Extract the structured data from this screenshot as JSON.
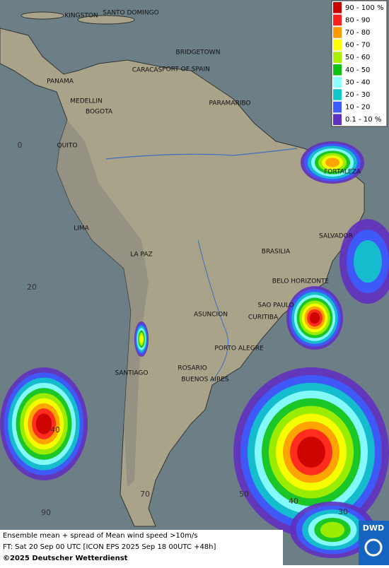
{
  "legend": {
    "items": [
      {
        "label": "90 - 100 %",
        "color": "#c80000"
      },
      {
        "label": "80 - 90",
        "color": "#ff2020"
      },
      {
        "label": "70 - 80",
        "color": "#ff9a00"
      },
      {
        "label": "60 - 70",
        "color": "#ffff00"
      },
      {
        "label": "50 - 60",
        "color": "#a8f000"
      },
      {
        "label": "40 - 50",
        "color": "#10c010"
      },
      {
        "label": "30 - 40",
        "color": "#90ffff"
      },
      {
        "label": "20 - 30",
        "color": "#10c8c8"
      },
      {
        "label": "10 - 20",
        "color": "#3c5cff"
      },
      {
        "label": "0.1 - 10 %",
        "color": "#6030c0"
      }
    ]
  },
  "cities": [
    "KINGSTON",
    "SANTO DOMINGO",
    "BRIDGETOWN",
    "CARACAS",
    "PORT OF SPAIN",
    "PANAMA",
    "MEDELLIN",
    "BOGOTA",
    "PARAMARIBO",
    "QUITO",
    "FORTALEZA",
    "LIMA",
    "SALVADOR",
    "BRASILIA",
    "LA PAZ",
    "BELO HORIZONTE",
    "SAO PAULO",
    "ASUNCION",
    "CURITIBA",
    "PORTO ALEGRE",
    "SANTIAGO",
    "ROSARIO",
    "BUENOS AIRES"
  ],
  "grid_labels": [
    "0",
    "20",
    "40",
    "90",
    "70",
    "50",
    "40",
    "30"
  ],
  "caption": {
    "line1": "Ensemble mean + spread of Mean wind speed >10m/s",
    "line2": "FT: Sat 20 Sep 00 UTC [ICON EPS 2025 Sep 18 00UTC +48h]",
    "copyright": "©2025 Deutscher Wetterdienst"
  },
  "logo": "DWD"
}
